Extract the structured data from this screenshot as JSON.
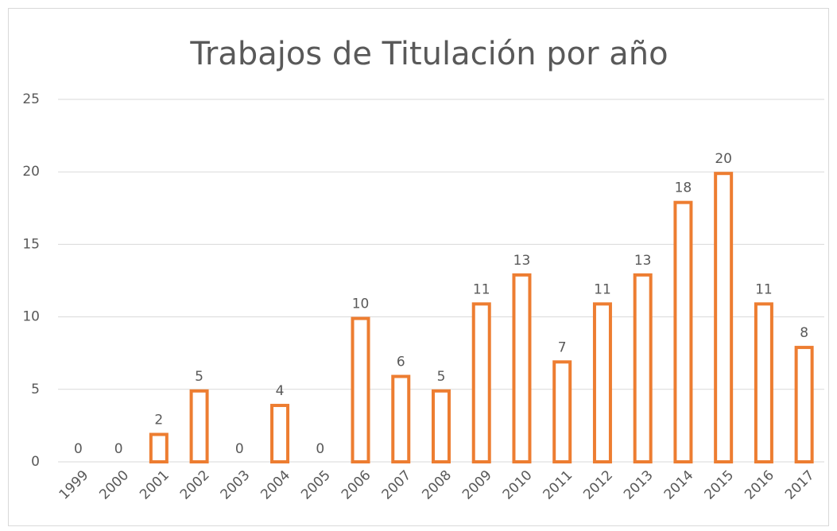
{
  "chart_data": {
    "type": "bar",
    "title": "Trabajos de Titulación por año",
    "categories": [
      "1999",
      "2000",
      "2001",
      "2002",
      "2003",
      "2004",
      "2005",
      "2006",
      "2007",
      "2008",
      "2009",
      "2010",
      "2011",
      "2012",
      "2013",
      "2014",
      "2015",
      "2016",
      "2017"
    ],
    "values": [
      0,
      0,
      2,
      5,
      0,
      4,
      0,
      10,
      6,
      5,
      11,
      13,
      7,
      11,
      13,
      18,
      20,
      11,
      8
    ],
    "color": "#ed7d31",
    "ylim": [
      0,
      25
    ],
    "yticks": [
      0,
      5,
      10,
      15,
      20,
      25
    ],
    "grid": true
  }
}
